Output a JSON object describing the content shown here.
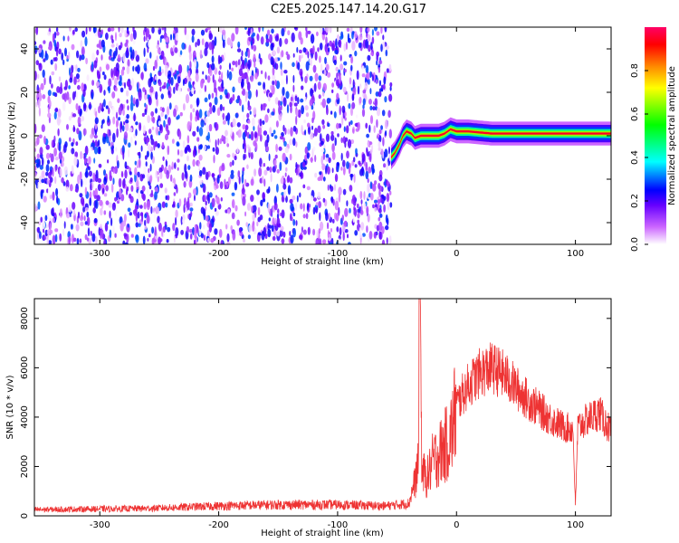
{
  "title": "C2E5.2025.147.14.20.G17",
  "chart_data": [
    {
      "type": "heatmap",
      "xlabel": "Height of straight line (km)",
      "ylabel": "Frequency (Hz)",
      "xlim": [
        -355,
        130
      ],
      "ylim": [
        -50,
        50
      ],
      "xticks": [
        -300,
        -200,
        -100,
        0,
        100
      ],
      "yticks": [
        -40,
        -20,
        0,
        20,
        40
      ],
      "grid": false,
      "colorbar": {
        "label": "Normalized spectral amplitude",
        "range": [
          0,
          1
        ],
        "ticks": [
          0.0,
          0.2,
          0.4,
          0.6,
          0.8
        ],
        "colors": [
          "#ffffff",
          "#cc66ff",
          "#6600ff",
          "#0000ff",
          "#00ffff",
          "#00ff00",
          "#ffff00",
          "#ff8800",
          "#ff0000",
          "#ff0066"
        ]
      },
      "noise_region": {
        "x_range": [
          -355,
          -55
        ],
        "frequency_range": [
          -50,
          50
        ],
        "amplitude_range": [
          0.0,
          0.3
        ]
      },
      "signal_trace": {
        "x": [
          -55,
          -52,
          -48,
          -45,
          -42,
          -38,
          -35,
          -30,
          -25,
          -20,
          -15,
          -10,
          -5,
          0,
          10,
          30,
          60,
          90,
          110,
          130
        ],
        "frequency": [
          -10,
          -8,
          -4,
          0,
          2,
          1,
          -1,
          0,
          0,
          0,
          0,
          1,
          3,
          2,
          2,
          1,
          1,
          1,
          1,
          1
        ],
        "peak_amplitude": 0.95
      }
    },
    {
      "type": "line",
      "xlabel": "Height of straight line (km)",
      "ylabel": "SNR (10 * v/v)",
      "xlim": [
        -355,
        130
      ],
      "ylim": [
        0,
        8800
      ],
      "xticks": [
        -300,
        -200,
        -100,
        0,
        100
      ],
      "yticks": [
        0,
        2000,
        4000,
        6000,
        8000
      ],
      "grid": false,
      "series": [
        {
          "color": "#ee3333",
          "x": [
            -355,
            -300,
            -260,
            -200,
            -150,
            -100,
            -60,
            -40,
            -32,
            -31,
            -29,
            -25,
            -20,
            -15,
            -10,
            -5,
            0,
            10,
            20,
            30,
            40,
            50,
            60,
            70,
            80,
            90,
            98,
            100,
            102,
            110,
            120,
            130
          ],
          "y": [
            250,
            280,
            300,
            400,
            450,
            450,
            400,
            500,
            2000,
            8800,
            1800,
            1500,
            2200,
            2500,
            2800,
            3200,
            4500,
            5300,
            5800,
            6000,
            5700,
            5200,
            4700,
            4300,
            3900,
            3600,
            3500,
            400,
            3600,
            3900,
            4200,
            3400
          ]
        }
      ]
    }
  ]
}
